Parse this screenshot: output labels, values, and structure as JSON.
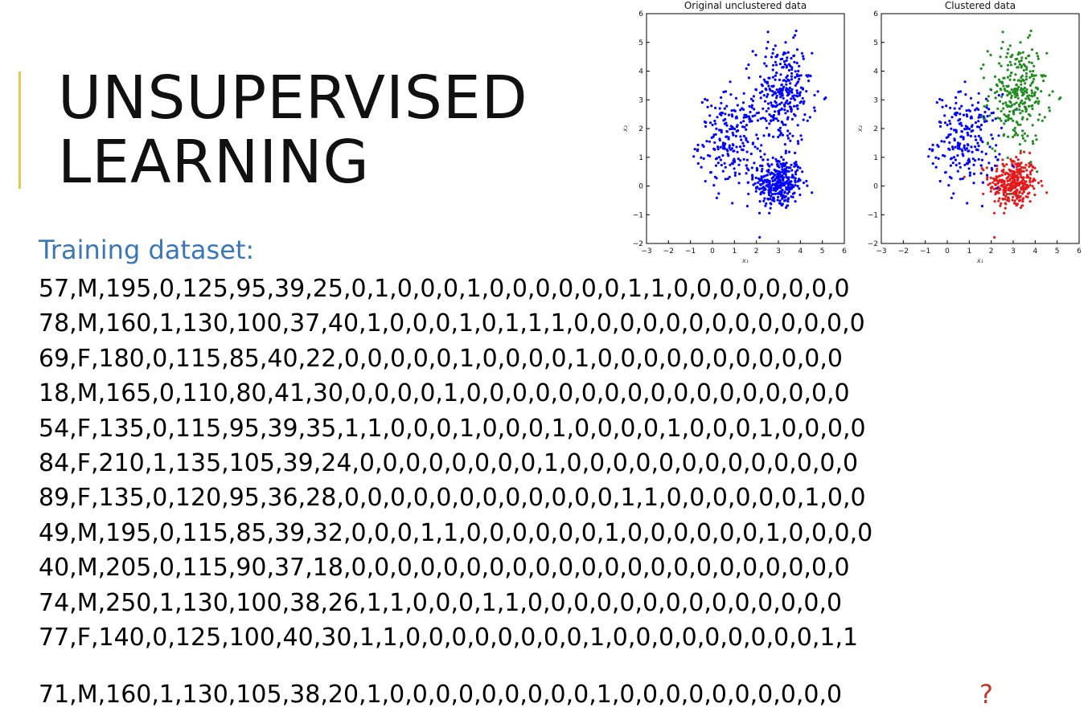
{
  "slide": {
    "title_lines": [
      "Unsupervised",
      "Learning"
    ],
    "dataset_label": "Training dataset:",
    "rows": [
      "57,M,195,0,125,95,39,25,0,1,0,0,0,1,0,0,0,0,0,0,1,1,0,0,0,0,0,0,0,0",
      "78,M,160,1,130,100,37,40,1,0,0,0,1,0,1,1,1,0,0,0,0,0,0,0,0,0,0,0,0,0",
      "69,F,180,0,115,85,40,22,0,0,0,0,0,1,0,0,0,0,1,0,0,0,0,0,0,0,0,0,0,0",
      "18,M,165,0,110,80,41,30,0,0,0,0,1,0,0,0,0,0,0,0,0,0,0,0,0,0,0,0,0,0",
      "54,F,135,0,115,95,39,35,1,1,0,0,0,1,0,0,0,1,0,0,0,0,1,0,0,0,1,0,0,0,0",
      "84,F,210,1,135,105,39,24,0,0,0,0,0,0,0,0,1,0,0,0,0,0,0,0,0,0,0,0,0,0",
      "89,F,135,0,120,95,36,28,0,0,0,0,0,0,0,0,0,0,0,0,1,1,0,0,0,0,0,0,1,0,0",
      "49,M,195,0,115,85,39,32,0,0,0,1,1,0,0,0,0,0,0,1,0,0,0,0,0,0,1,0,0,0,0",
      "40,M,205,0,115,90,37,18,0,0,0,0,0,0,0,0,0,0,0,0,0,0,0,0,0,0,0,0,0,0",
      "74,M,250,1,130,100,38,26,1,1,0,0,0,1,1,0,0,0,0,0,0,0,0,0,0,0,0,0,0",
      "77,F,140,0,125,100,40,30,1,1,0,0,0,0,0,0,0,0,1,0,0,0,0,0,0,0,0,0,1,1"
    ],
    "query_row": "71,M,160,1,130,105,38,20,1,0,0,0,0,0,0,0,0,0,1,0,0,0,0,0,0,0,0,0,0",
    "query_mark": "?"
  },
  "chart_data": [
    {
      "type": "scatter",
      "title": "Original unclustered data",
      "xlabel": "x₁",
      "ylabel": "x₂",
      "xlim": [
        -3,
        6
      ],
      "ylim": [
        -2,
        6
      ],
      "xticks": [
        "−3",
        "−2",
        "−1",
        "0",
        "1",
        "2",
        "3",
        "4",
        "5",
        "6"
      ],
      "yticks": [
        "−2",
        "−1",
        "0",
        "1",
        "2",
        "3",
        "4",
        "5",
        "6"
      ],
      "series": [
        {
          "color": "#0000ff",
          "cluster_centers": [
            [
              3.0,
              0.1
            ],
            [
              0.9,
              1.6
            ],
            [
              3.2,
              3.2
            ]
          ],
          "cluster_spread": [
            [
              0.55,
              0.45
            ],
            [
              0.75,
              0.8
            ],
            [
              0.65,
              0.9
            ]
          ],
          "points_per_cluster": [
            330,
            230,
            290
          ]
        }
      ]
    },
    {
      "type": "scatter",
      "title": "Clustered data",
      "xlabel": "x₁",
      "ylabel": "x₂",
      "xlim": [
        -3,
        6
      ],
      "ylim": [
        -2,
        6
      ],
      "xticks": [
        "−3",
        "−2",
        "−1",
        "0",
        "1",
        "2",
        "3",
        "4",
        "5",
        "6"
      ],
      "yticks": [
        "−2",
        "−1",
        "0",
        "1",
        "2",
        "3",
        "4",
        "5",
        "6"
      ],
      "series": [
        {
          "color": "#0000ff",
          "cluster_center": [
            0.9,
            1.6
          ],
          "cluster_spread": [
            0.75,
            0.8
          ],
          "points": 230
        },
        {
          "color": "#228b22",
          "cluster_center": [
            3.2,
            3.2
          ],
          "cluster_spread": [
            0.65,
            0.9
          ],
          "points": 290
        },
        {
          "color": "#e31a1c",
          "cluster_center": [
            3.0,
            0.1
          ],
          "cluster_spread": [
            0.55,
            0.45
          ],
          "points": 330
        }
      ]
    }
  ]
}
